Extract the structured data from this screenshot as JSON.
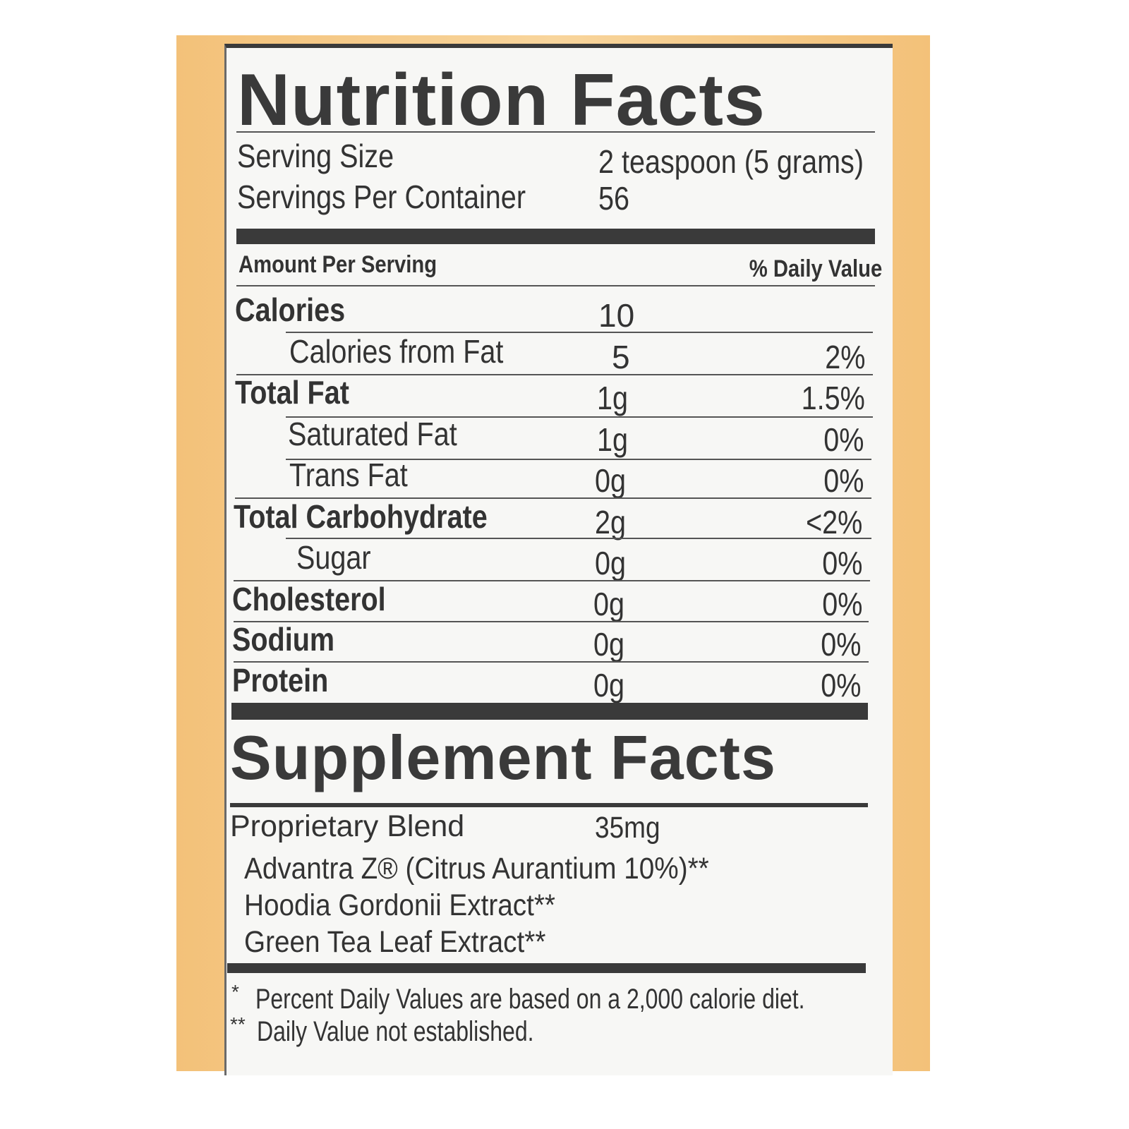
{
  "nutrition": {
    "title": "Nutrition Facts",
    "serving_size_label": "Serving Size",
    "serving_size_value": "2 teaspoon (5 grams)",
    "servings_label": "Servings Per Container",
    "servings_value": "56",
    "amount_per_serving": "Amount Per Serving",
    "daily_value_header": "% Daily Value",
    "rows": [
      {
        "label": "Calories",
        "amount": "10",
        "dv": ""
      },
      {
        "label": "Calories from Fat",
        "amount": "5",
        "dv": "2%"
      },
      {
        "label": "Total Fat",
        "amount": "1g",
        "dv": "1.5%"
      },
      {
        "label": "Saturated Fat",
        "amount": "1g",
        "dv": "0%"
      },
      {
        "label": "Trans Fat",
        "amount": "0g",
        "dv": "0%"
      },
      {
        "label": "Total Carbohydrate",
        "amount": "2g",
        "dv": "<2%"
      },
      {
        "label": "Sugar",
        "amount": "0g",
        "dv": "0%"
      },
      {
        "label": "Cholesterol",
        "amount": "0g",
        "dv": "0%"
      },
      {
        "label": "Sodium",
        "amount": "0g",
        "dv": "0%"
      },
      {
        "label": "Protein",
        "amount": "0g",
        "dv": "0%"
      }
    ]
  },
  "supplement": {
    "title": "Supplement Facts",
    "blend_label": "Proprietary Blend",
    "blend_amount": "35mg",
    "ingredients": [
      "Advantra Z® (Citrus Aurantium 10%)**",
      "Hoodia Gordonii Extract**",
      "Green Tea Leaf Extract**"
    ],
    "footnotes": [
      {
        "mark": "*",
        "text": "Percent Daily Values are based on a 2,000 calorie diet."
      },
      {
        "mark": "**",
        "text": "Daily Value not established."
      }
    ]
  }
}
